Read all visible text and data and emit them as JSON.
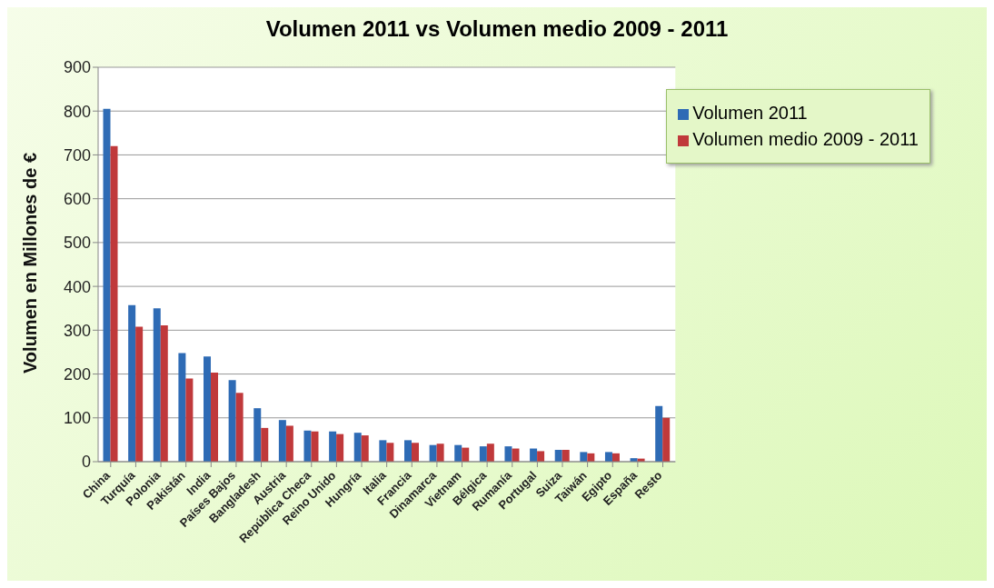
{
  "chart_data": {
    "type": "bar",
    "title": "Volumen 2011 vs Volumen medio 2009 - 2011",
    "ylabel": "Volumen en Millones de €",
    "categories": [
      "China",
      "Turquía",
      "Polonia",
      "Pakistán",
      "India",
      "Países Bajos",
      "Bangladesh",
      "Austria",
      "República Checa",
      "Reino Unido",
      "Hungría",
      "Italia",
      "Francia",
      "Dinamarca",
      "Vietnam",
      "Bélgica",
      "Rumanía",
      "Portugal",
      "Suiza",
      "Taiwán",
      "Egipto",
      "España",
      "Resto"
    ],
    "series": [
      {
        "name": "Volumen 2011",
        "color": "#2e6bb5",
        "values": [
          805,
          357,
          350,
          248,
          240,
          186,
          122,
          95,
          71,
          69,
          66,
          49,
          49,
          38,
          38,
          35,
          35,
          30,
          27,
          22,
          22,
          8,
          127
        ]
      },
      {
        "name": "Volumen medio 2009 - 2011",
        "color": "#c0393b",
        "values": [
          720,
          308,
          311,
          190,
          203,
          157,
          77,
          82,
          69,
          63,
          60,
          43,
          43,
          41,
          32,
          41,
          30,
          24,
          27,
          19,
          19,
          7,
          100
        ]
      }
    ],
    "ylim": [
      0,
      900
    ],
    "yticks": [
      0,
      100,
      200,
      300,
      400,
      500,
      600,
      700,
      800,
      900
    ],
    "grid": "y",
    "legend": "top right"
  }
}
